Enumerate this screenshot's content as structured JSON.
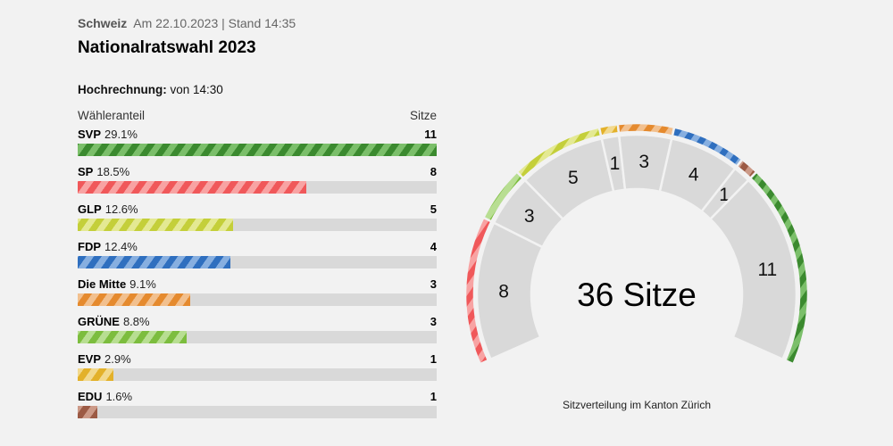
{
  "header": {
    "kicker": "Schweiz",
    "meta": "Am 22.10.2023 | Stand 14:35",
    "title": "Nationalratswahl 2023"
  },
  "projection": {
    "label": "Hochrechnung:",
    "value": "von 14:30"
  },
  "table": {
    "col_share": "Wähleranteil",
    "col_seats": "Sitze"
  },
  "chart_data": {
    "type": "bar",
    "parties": [
      {
        "name": "SVP",
        "share": "29.1%",
        "share_value": 29.1,
        "seats": 11,
        "color": "#3b8a2f",
        "stripe": "#7bbf6a"
      },
      {
        "name": "SP",
        "share": "18.5%",
        "share_value": 18.5,
        "seats": 8,
        "color": "#f0585a",
        "stripe": "#f8a3a3"
      },
      {
        "name": "GLP",
        "share": "12.6%",
        "share_value": 12.6,
        "seats": 5,
        "color": "#c4cf3a",
        "stripe": "#e4e993"
      },
      {
        "name": "FDP",
        "share": "12.4%",
        "share_value": 12.4,
        "seats": 4,
        "color": "#2f6fbf",
        "stripe": "#87afe0"
      },
      {
        "name": "Die Mitte",
        "share": "9.1%",
        "share_value": 9.1,
        "seats": 3,
        "color": "#e58a2e",
        "stripe": "#f2c08e"
      },
      {
        "name": "GRÜNE",
        "share": "8.8%",
        "share_value": 8.8,
        "seats": 3,
        "color": "#7cbd3e",
        "stripe": "#b8de92"
      },
      {
        "name": "EVP",
        "share": "2.9%",
        "share_value": 2.9,
        "seats": 1,
        "color": "#e3b12a",
        "stripe": "#f2d98e"
      },
      {
        "name": "EDU",
        "share": "1.6%",
        "share_value": 1.6,
        "seats": 1,
        "color": "#9c5a44",
        "stripe": "#cc9a88"
      }
    ],
    "bar_max_share": 29.1,
    "arc_order": [
      "SP",
      "GRÜNE",
      "GLP",
      "EVP",
      "Die Mitte",
      "FDP",
      "EDU",
      "SVP"
    ],
    "total_label": "36 Sitze",
    "caption": "Sitzverteilung im Kanton Zürich"
  }
}
